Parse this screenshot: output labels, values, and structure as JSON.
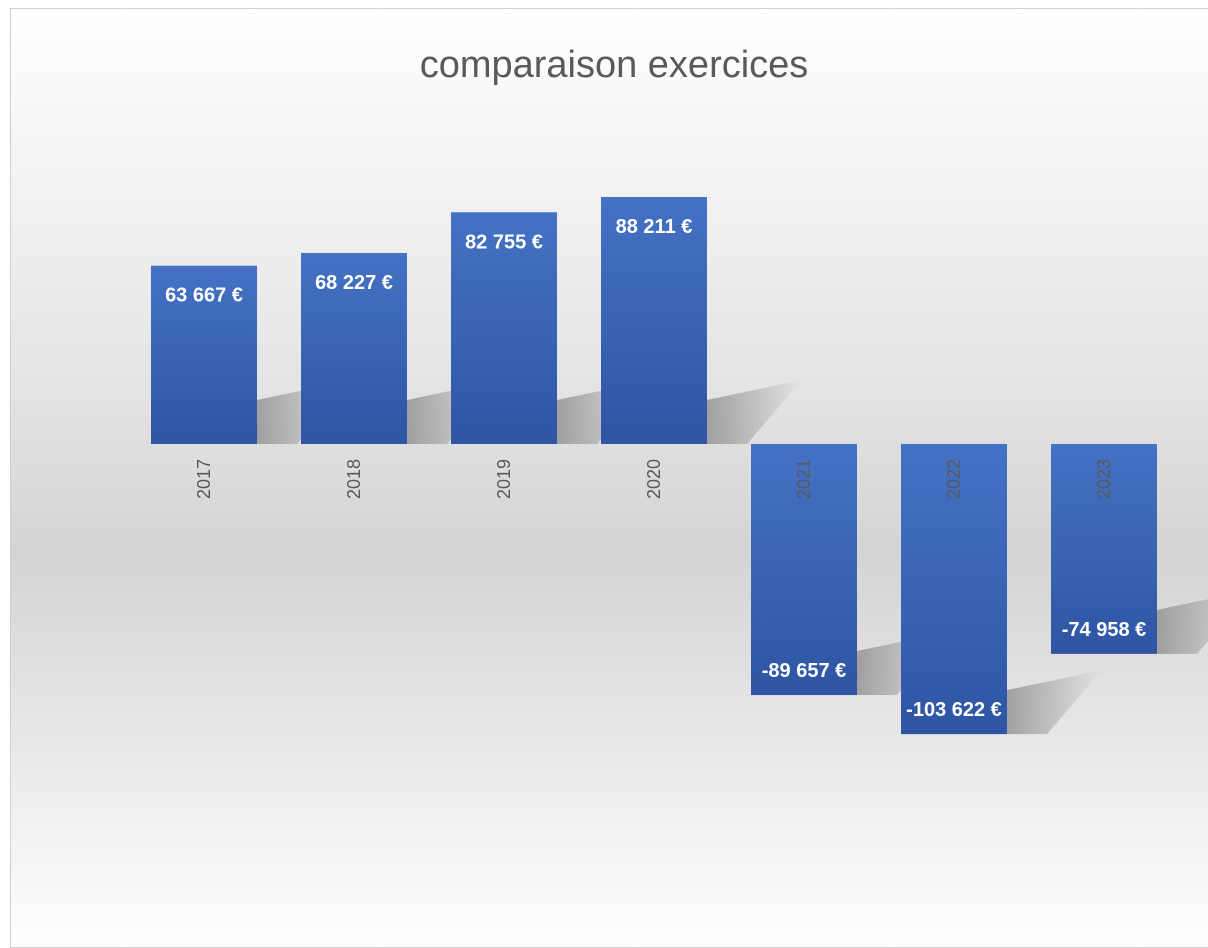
{
  "chart_data": {
    "type": "bar",
    "title": "comparaison exercices",
    "categories": [
      "2017",
      "2018",
      "2019",
      "2020",
      "2021",
      "2022",
      "2023"
    ],
    "values": [
      63667,
      68227,
      82755,
      88211,
      -89657,
      -103622,
      -74958
    ],
    "data_labels": [
      "63 667 €",
      "68 227 €",
      "82 755 €",
      "88 211 €",
      "-89 657 €",
      "-103 622 €",
      "-74 958 €"
    ],
    "xlabel": "",
    "ylabel": "",
    "ylim": [
      -135000,
      135000
    ],
    "grid": false,
    "legend": "none",
    "bar_color_top": "#4472c4",
    "bar_color_bottom": "#2f55a4",
    "shadow_color": "#9a9a9a"
  }
}
